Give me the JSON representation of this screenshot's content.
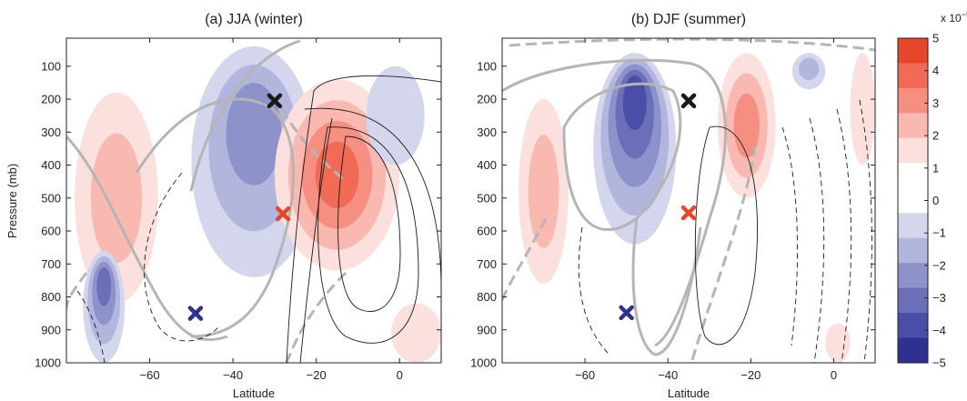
{
  "figure": {
    "ylabel": "Pressure (mb)",
    "colorbar_exponent": "x 10",
    "colorbar_exponent_power": "−5"
  },
  "colors": {
    "red": [
      "#fce0dd",
      "#f9b9b1",
      "#f58f82",
      "#f06a55",
      "#e8462a"
    ],
    "blue": [
      "#d3d6ec",
      "#b2b6dd",
      "#8e92cb",
      "#6b6fb8",
      "#4a4ea6",
      "#2e3192"
    ],
    "contour": "#1a1a1a",
    "jet_contour": "#b5b5b5",
    "marker_black": "#1a1a1a",
    "marker_orange": "#e8462a",
    "marker_blue": "#2e3192"
  },
  "colorbar": {
    "ticks": [
      "5",
      "4",
      "3",
      "2",
      "1",
      "0",
      "−1",
      "−2",
      "−3",
      "−4",
      "−5"
    ],
    "range": [
      -5,
      5
    ]
  },
  "chart_data": [
    {
      "type": "heatmap",
      "title": "(a) JJA (winter)",
      "xlabel": "Latitude",
      "ylabel": "Pressure (mb)",
      "xlim": [
        -80,
        10
      ],
      "ylim": [
        1000,
        15
      ],
      "x_ticks": [
        "−60",
        "−40",
        "−20",
        "0"
      ],
      "x_tick_values": [
        -60,
        -40,
        -20,
        0
      ],
      "y_ticks": [
        "100",
        "200",
        "300",
        "400",
        "500",
        "600",
        "700",
        "800",
        "900",
        "1000"
      ],
      "y_tick_values": [
        100,
        200,
        300,
        400,
        500,
        600,
        700,
        800,
        900,
        1000
      ],
      "blobs": [
        {
          "x": [
            -78,
            -58
          ],
          "p": [
            180,
            820
          ],
          "sign": 1,
          "levels": 2
        },
        {
          "x": [
            -50,
            -20
          ],
          "p": [
            40,
            740
          ],
          "sign": -1,
          "levels": 3
        },
        {
          "x": [
            -30,
            0
          ],
          "p": [
            140,
            720
          ],
          "sign": 1,
          "levels": 4
        },
        {
          "x": [
            -76,
            -66
          ],
          "p": [
            660,
            1000
          ],
          "sign": -1,
          "levels": 4
        },
        {
          "x": [
            -8,
            6
          ],
          "p": [
            100,
            400
          ],
          "sign": -1,
          "levels": 1
        },
        {
          "x": [
            -2,
            10
          ],
          "p": [
            820,
            1000
          ],
          "sign": 1,
          "levels": 1
        }
      ],
      "markers": [
        {
          "name": "black",
          "x": -30,
          "p": 205
        },
        {
          "name": "orange",
          "x": -28,
          "p": 548
        },
        {
          "name": "blue",
          "x": -49,
          "p": 850
        }
      ]
    },
    {
      "type": "heatmap",
      "title": "(b) DJF (summer)",
      "xlabel": "Latitude",
      "ylabel": "",
      "xlim": [
        -80,
        10
      ],
      "ylim": [
        1000,
        15
      ],
      "x_ticks": [
        "−60",
        "−40",
        "−20",
        "0"
      ],
      "x_tick_values": [
        -60,
        -40,
        -20,
        0
      ],
      "y_ticks": [
        "100",
        "200",
        "300",
        "400",
        "500",
        "600",
        "700",
        "800",
        "900",
        "1000"
      ],
      "y_tick_values": [
        100,
        200,
        300,
        400,
        500,
        600,
        700,
        800,
        900,
        1000
      ],
      "blobs": [
        {
          "x": [
            -76,
            -64
          ],
          "p": [
            200,
            760
          ],
          "sign": 1,
          "levels": 2
        },
        {
          "x": [
            -58,
            -38
          ],
          "p": [
            60,
            640
          ],
          "sign": -1,
          "levels": 5
        },
        {
          "x": [
            -28,
            -14
          ],
          "p": [
            60,
            500
          ],
          "sign": 1,
          "levels": 3
        },
        {
          "x": [
            -10,
            -2
          ],
          "p": [
            60,
            170
          ],
          "sign": -1,
          "levels": 2
        },
        {
          "x": [
            4,
            10
          ],
          "p": [
            60,
            400
          ],
          "sign": 1,
          "levels": 1
        },
        {
          "x": [
            -2,
            4
          ],
          "p": [
            880,
            1000
          ],
          "sign": 1,
          "levels": 1
        }
      ],
      "markers": [
        {
          "name": "black",
          "x": -35,
          "p": 205
        },
        {
          "name": "orange",
          "x": -35,
          "p": 545
        },
        {
          "name": "blue",
          "x": -50,
          "p": 848
        }
      ]
    }
  ]
}
